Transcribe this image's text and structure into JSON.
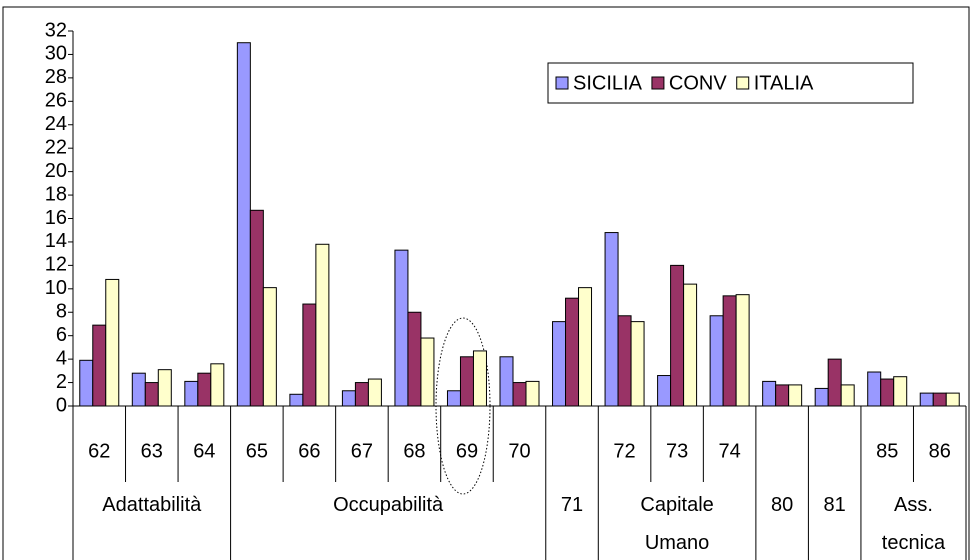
{
  "chart_data": {
    "type": "bar",
    "categories": [
      "62",
      "63",
      "64",
      "65",
      "66",
      "67",
      "68",
      "69",
      "70",
      null,
      "72",
      "73",
      "74",
      null,
      null,
      "85",
      "86"
    ],
    "groups": [
      {
        "label": "Adattabilità",
        "span": 3
      },
      {
        "label": "Occupabilità",
        "span": 6
      },
      {
        "label": "71",
        "span": 1
      },
      {
        "label": "Capitale\nUmano",
        "span": 3
      },
      {
        "label": "80",
        "span": 1
      },
      {
        "label": "81",
        "span": 1
      },
      {
        "label": "Ass.\ntecnica",
        "span": 2
      }
    ],
    "series": [
      {
        "name": "SICILIA",
        "color": "#9999ff",
        "values": [
          3.9,
          2.8,
          2.1,
          31,
          1.0,
          1.3,
          13.3,
          1.3,
          4.2,
          7.2,
          14.8,
          2.6,
          7.7,
          2.1,
          1.5,
          2.9,
          1.1
        ]
      },
      {
        "name": "CONV",
        "color": "#993366",
        "values": [
          6.9,
          2.0,
          2.8,
          16.7,
          8.7,
          2.0,
          8.0,
          4.2,
          2.0,
          9.2,
          7.7,
          12.0,
          9.4,
          1.8,
          4.0,
          2.3,
          1.1
        ]
      },
      {
        "name": "ITALIA",
        "color": "#ffffcc",
        "values": [
          10.8,
          3.1,
          3.6,
          10.1,
          13.8,
          2.3,
          5.8,
          4.7,
          2.1,
          10.1,
          7.2,
          10.4,
          9.5,
          1.8,
          1.8,
          2.5,
          1.1
        ]
      }
    ],
    "ylim": [
      0,
      32
    ],
    "yticks": [
      0,
      2,
      4,
      6,
      8,
      10,
      12,
      14,
      16,
      18,
      20,
      22,
      24,
      26,
      28,
      30,
      32
    ],
    "grid": false,
    "legend": "top-right"
  }
}
